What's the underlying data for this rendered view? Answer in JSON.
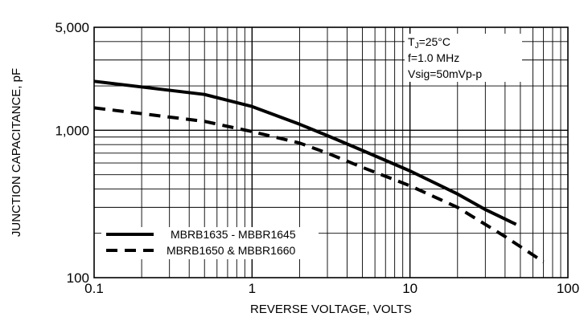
{
  "chart_data": {
    "type": "line",
    "title": "",
    "xlabel": "REVERSE VOLTAGE, VOLTS",
    "ylabel": "JUNCTION CAPACITANCE, pF",
    "xscale": "log",
    "yscale": "log",
    "xlim": [
      0.1,
      100
    ],
    "ylim": [
      100,
      5000
    ],
    "grid": true,
    "legend": "bottom-left",
    "x_ticks": [
      {
        "value": 0.1,
        "label": "0.1"
      },
      {
        "value": 1,
        "label": "1"
      },
      {
        "value": 10,
        "label": "10"
      },
      {
        "value": 100,
        "label": "100"
      }
    ],
    "y_ticks": [
      {
        "value": 100,
        "label": "100"
      },
      {
        "value": 1000,
        "label": "1,000"
      },
      {
        "value": 5000,
        "label": "5,000"
      }
    ],
    "conditions": {
      "tj": "T J=25°C",
      "tj_main": "T",
      "tj_sub": "J",
      "tj_rest": "=25°C",
      "freq": "f=1.0 MHz",
      "vsig": "Vsig=50mVp-p"
    },
    "series": [
      {
        "name": "MBRB1635 - MBBR1645",
        "style": "solid",
        "color": "#000000",
        "points": [
          [
            0.1,
            2150
          ],
          [
            0.5,
            1750
          ],
          [
            1,
            1450
          ],
          [
            2,
            1100
          ],
          [
            3,
            920
          ],
          [
            5,
            730
          ],
          [
            10,
            530
          ],
          [
            20,
            370
          ],
          [
            30,
            290
          ],
          [
            47,
            230
          ]
        ]
      },
      {
        "name": "MBRB1650 & MBBR1660",
        "style": "dashed",
        "color": "#000000",
        "points": [
          [
            0.1,
            1420
          ],
          [
            0.5,
            1150
          ],
          [
            1,
            980
          ],
          [
            2,
            820
          ],
          [
            3,
            700
          ],
          [
            5,
            560
          ],
          [
            10,
            420
          ],
          [
            20,
            300
          ],
          [
            40,
            190
          ],
          [
            70,
            128
          ]
        ]
      }
    ]
  }
}
